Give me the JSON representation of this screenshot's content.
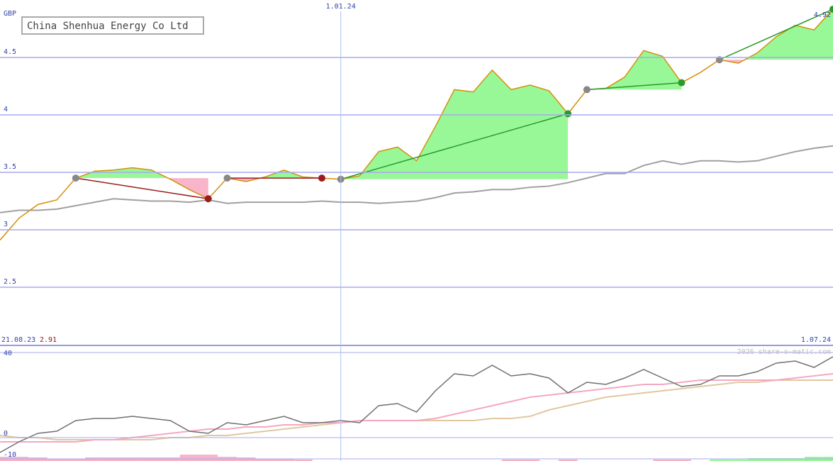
{
  "chart_data": [
    {
      "type": "line",
      "title": "China Shenhua Energy Co Ltd",
      "y_label": "GBP",
      "categories": [
        "21.08.23",
        null,
        null,
        null,
        null,
        null,
        null,
        null,
        null,
        null,
        null,
        null,
        null,
        null,
        null,
        null,
        null,
        null,
        "1.01.24",
        null,
        null,
        null,
        null,
        null,
        null,
        null,
        null,
        null,
        null,
        null,
        null,
        null,
        null,
        null,
        null,
        null,
        null,
        null,
        null,
        null,
        null,
        null,
        null,
        null,
        "1.07.24"
      ],
      "series": [
        {
          "color": "#d4900a",
          "values": [
            2.91,
            3.1,
            3.22,
            3.26,
            3.45,
            3.51,
            3.52,
            3.54,
            3.52,
            3.44,
            3.35,
            3.27,
            3.45,
            3.42,
            3.46,
            3.52,
            3.46,
            3.45,
            3.44,
            3.47,
            3.68,
            3.72,
            3.6,
            3.9,
            4.22,
            4.2,
            4.39,
            4.22,
            4.26,
            4.21,
            4.01,
            4.22,
            4.23,
            4.33,
            4.56,
            4.51,
            4.28,
            4.37,
            4.48,
            4.45,
            4.54,
            4.68,
            4.78,
            4.74,
            4.92
          ]
        },
        {
          "color": "#a0a0a0",
          "values": [
            3.15,
            3.17,
            3.17,
            3.18,
            3.21,
            3.24,
            3.27,
            3.26,
            3.25,
            3.25,
            3.24,
            3.26,
            3.23,
            3.24,
            3.24,
            3.24,
            3.24,
            3.25,
            3.24,
            3.24,
            3.23,
            3.24,
            3.25,
            3.28,
            3.32,
            3.33,
            3.35,
            3.35,
            3.37,
            3.38,
            3.41,
            3.45,
            3.49,
            3.49,
            3.56,
            3.6,
            3.57,
            3.6,
            3.6,
            3.59,
            3.6,
            3.64,
            3.68,
            3.71,
            3.73
          ]
        }
      ],
      "trades": [
        {
          "from": 4,
          "to": 11,
          "color": "#9b1c1c"
        },
        {
          "from": 12,
          "to": 17,
          "color": "#9b1c1c"
        },
        {
          "from": 18,
          "to": 30,
          "color": "#2a9a2a"
        },
        {
          "from": 31,
          "to": 36,
          "color": "#2a9a2a"
        },
        {
          "from": 38,
          "to": 44,
          "color": "#2a9a2a"
        }
      ],
      "ylim": [
        2,
        5
      ],
      "yticks": [
        2.5,
        3,
        3.5,
        4,
        4.5
      ],
      "grid": true
    },
    {
      "type": "line",
      "annotation": "2026 share-o-matic.com",
      "series": [
        {
          "color": "#707070",
          "values": [
            -7,
            -2,
            2,
            3,
            8,
            9,
            9,
            10,
            9,
            8,
            3,
            2,
            7,
            6,
            8,
            10,
            7,
            7,
            8,
            7,
            15,
            16,
            12,
            22,
            30,
            29,
            34,
            29,
            30,
            28,
            21,
            26,
            25,
            28,
            32,
            28,
            24,
            25,
            29,
            29,
            31,
            35,
            36,
            33,
            38
          ]
        },
        {
          "color": "#f4a8c0",
          "values": [
            -2,
            -2,
            -2,
            -2,
            -2,
            -1,
            -1,
            0,
            1,
            2,
            3,
            4,
            4,
            5,
            5,
            6,
            6,
            7,
            7,
            8,
            8,
            8,
            8,
            9,
            11,
            13,
            15,
            17,
            19,
            20,
            21,
            22,
            23,
            24,
            25,
            25,
            26,
            27,
            27,
            27,
            27,
            27,
            28,
            29,
            30
          ]
        },
        {
          "color": "#e0c8a0",
          "values": [
            1,
            0,
            0,
            -1,
            -1,
            -1,
            -1,
            -1,
            -1,
            0,
            0,
            1,
            1,
            2,
            3,
            4,
            5,
            6,
            7,
            8,
            8,
            8,
            8,
            8,
            8,
            8,
            9,
            9,
            10,
            13,
            15,
            17,
            19,
            20,
            21,
            22,
            23,
            24,
            25,
            26,
            26,
            27,
            27,
            27,
            27
          ]
        }
      ],
      "bars": [
        {
          "color": "#f8b4c8",
          "values": [
            -9,
            -9,
            -9.3,
            -10,
            -10,
            -9.3,
            -9.3,
            -9.3,
            -9.3,
            -9.3,
            -8,
            -8,
            -9,
            -9.3,
            -10,
            -10,
            -10.3,
            null,
            null,
            null,
            null,
            null,
            null,
            null,
            null,
            null,
            null,
            -10.3,
            -10.3,
            null,
            -10.3,
            null,
            null,
            null,
            null,
            -10.3,
            -10.3,
            null,
            null,
            null,
            null,
            null,
            null,
            null,
            null
          ]
        },
        {
          "color": "#98f898",
          "values": [
            null,
            null,
            null,
            null,
            null,
            null,
            null,
            null,
            null,
            null,
            null,
            null,
            null,
            null,
            null,
            null,
            null,
            null,
            null,
            null,
            null,
            null,
            null,
            null,
            null,
            null,
            null,
            null,
            null,
            null,
            null,
            null,
            null,
            null,
            null,
            null,
            null,
            null,
            -10.3,
            -10.3,
            -9.7,
            -9.7,
            -9.7,
            -9,
            -9
          ]
        }
      ],
      "ylim": [
        -11,
        43
      ],
      "yticks": [
        -10,
        0,
        40
      ],
      "grid": true
    }
  ]
}
